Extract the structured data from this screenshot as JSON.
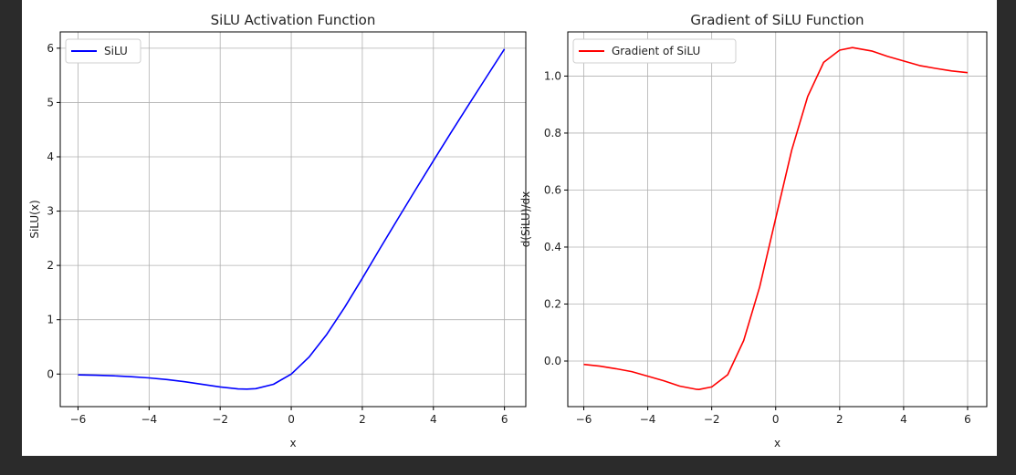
{
  "chart_data": [
    {
      "type": "line",
      "title": "SiLU Activation Function",
      "xlabel": "x",
      "ylabel": "SiLU(x)",
      "xlim": [
        -6.5,
        6.6
      ],
      "ylim": [
        -0.6,
        6.3
      ],
      "xticks": [
        -6,
        -4,
        -2,
        0,
        2,
        4,
        6
      ],
      "xtick_labels": [
        "−6",
        "−4",
        "−2",
        "0",
        "2",
        "4",
        "6"
      ],
      "yticks": [
        0,
        1,
        2,
        3,
        4,
        5,
        6
      ],
      "ytick_labels": [
        "0",
        "1",
        "2",
        "3",
        "4",
        "5",
        "6"
      ],
      "grid": true,
      "legend_position": "top-left",
      "series": [
        {
          "name": "SiLU",
          "color": "#0000ff",
          "x": [
            -6,
            -5.5,
            -5,
            -4.5,
            -4,
            -3.5,
            -3,
            -2.5,
            -2,
            -1.5,
            -1.25,
            -1,
            -0.5,
            0,
            0.5,
            1,
            1.5,
            2,
            2.5,
            3,
            3.5,
            4,
            4.5,
            5,
            5.5,
            6
          ],
          "y": [
            -0.015,
            -0.022,
            -0.033,
            -0.05,
            -0.072,
            -0.101,
            -0.142,
            -0.19,
            -0.238,
            -0.274,
            -0.278,
            -0.269,
            -0.189,
            0,
            0.311,
            0.731,
            1.226,
            1.762,
            2.315,
            2.857,
            3.395,
            3.928,
            4.45,
            4.967,
            5.477,
            5.985
          ]
        }
      ]
    },
    {
      "type": "line",
      "title": "Gradient of SiLU Function",
      "xlabel": "x",
      "ylabel": "d(SiLU)/dx",
      "xlim": [
        -6.5,
        6.6
      ],
      "ylim": [
        -0.16,
        1.155
      ],
      "xticks": [
        -6,
        -4,
        -2,
        0,
        2,
        4,
        6
      ],
      "xtick_labels": [
        "−6",
        "−4",
        "−2",
        "0",
        "2",
        "4",
        "6"
      ],
      "yticks": [
        0,
        0.2,
        0.4,
        0.6,
        0.8,
        1
      ],
      "ytick_labels": [
        "0.0",
        "0.2",
        "0.4",
        "0.6",
        "0.8",
        "1.0"
      ],
      "grid": true,
      "legend_position": "top-left",
      "series": [
        {
          "name": "Gradient of SiLU",
          "color": "#ff0000",
          "x": [
            -6,
            -5.5,
            -5,
            -4.5,
            -4,
            -3.5,
            -3,
            -2.5,
            -2.4,
            -2,
            -1.5,
            -1,
            -0.5,
            0,
            0.5,
            1,
            1.5,
            2,
            2.4,
            3,
            3.5,
            4,
            4.5,
            5,
            5.5,
            6
          ],
          "y": [
            -0.012,
            -0.018,
            -0.027,
            -0.037,
            -0.053,
            -0.069,
            -0.088,
            -0.099,
            -0.1,
            -0.091,
            -0.048,
            0.072,
            0.26,
            0.5,
            0.74,
            0.928,
            1.048,
            1.091,
            1.1,
            1.088,
            1.069,
            1.053,
            1.037,
            1.027,
            1.018,
            1.012
          ]
        }
      ]
    }
  ]
}
